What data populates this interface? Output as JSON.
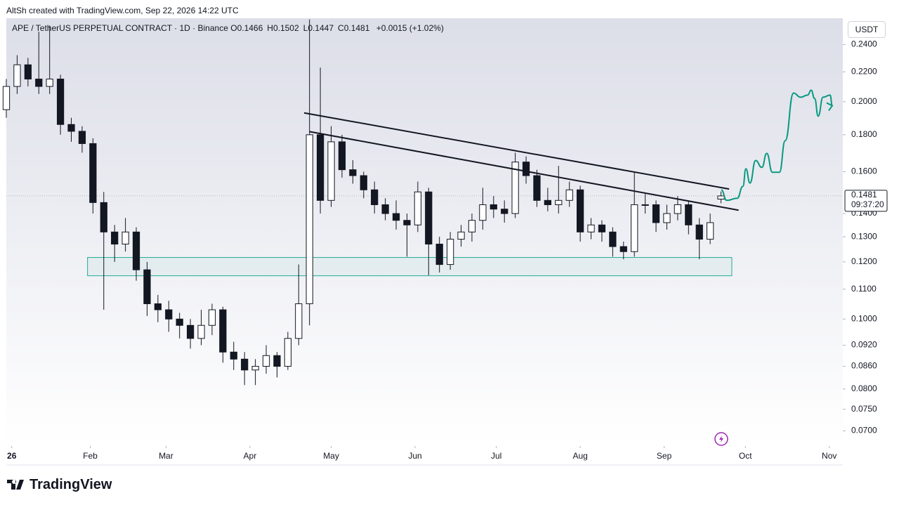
{
  "header": {
    "credit": "AltSh created with TradingView.com, Sep 22, 2026 14:22 UTC",
    "symbol": "APE / TetherUS PERPETUAL CONTRACT · 1D · Binance",
    "ohlc": [
      {
        "key": "O",
        "value": "0.1466"
      },
      {
        "key": "H",
        "value": "0.1502"
      },
      {
        "key": "L",
        "value": "0.1447"
      },
      {
        "key": "C",
        "value": "0.1481"
      }
    ],
    "change": "+0.0015 (+1.02%)",
    "currency": "USDT"
  },
  "footer": {
    "brand": "TradingView"
  },
  "chart_data": {
    "type": "candlestick",
    "log_scale": true,
    "up_color": "#ffffff",
    "down_color": "#131722",
    "edge_color": "#131722",
    "x": [
      0,
      4,
      8,
      12,
      16,
      20,
      24,
      28,
      32,
      36,
      40,
      44,
      48,
      52,
      56,
      60,
      64,
      68,
      72,
      76,
      80,
      84,
      88,
      92,
      96,
      100,
      104,
      108,
      112,
      116,
      120,
      124,
      128,
      132,
      136,
      140,
      144,
      148,
      152,
      156,
      160,
      164,
      168,
      172,
      176,
      180,
      184,
      188,
      192,
      196,
      200,
      204,
      208,
      212,
      216,
      220,
      224,
      228,
      232,
      236,
      240,
      244,
      248,
      252,
      256,
      260,
      264
    ],
    "open": [
      0.195,
      0.21,
      0.225,
      0.215,
      0.21,
      0.215,
      0.186,
      0.182,
      0.175,
      0.145,
      0.132,
      0.127,
      0.132,
      0.117,
      0.105,
      0.103,
      0.1,
      0.098,
      0.094,
      0.098,
      0.103,
      0.09,
      0.088,
      0.085,
      0.086,
      0.089,
      0.086,
      0.094,
      0.105,
      0.18,
      0.146,
      0.176,
      0.161,
      0.158,
      0.151,
      0.144,
      0.14,
      0.137,
      0.135,
      0.15,
      0.127,
      0.119,
      0.129,
      0.132,
      0.137,
      0.144,
      0.142,
      0.14,
      0.165,
      0.158,
      0.146,
      0.144,
      0.146,
      0.151,
      0.132,
      0.135,
      0.132,
      0.126,
      0.124,
      0.144,
      0.144,
      0.136,
      0.14,
      0.144,
      0.135,
      0.129,
      0.1466
    ],
    "high": [
      0.215,
      0.232,
      0.23,
      0.25,
      0.255,
      0.218,
      0.19,
      0.185,
      0.178,
      0.15,
      0.135,
      0.138,
      0.134,
      0.12,
      0.108,
      0.106,
      0.102,
      0.1,
      0.103,
      0.105,
      0.104,
      0.093,
      0.09,
      0.088,
      0.092,
      0.09,
      0.096,
      0.119,
      0.26,
      0.223,
      0.185,
      0.18,
      0.166,
      0.16,
      0.155,
      0.147,
      0.146,
      0.14,
      0.155,
      0.152,
      0.13,
      0.132,
      0.135,
      0.14,
      0.152,
      0.148,
      0.146,
      0.17,
      0.168,
      0.161,
      0.152,
      0.163,
      0.155,
      0.153,
      0.138,
      0.137,
      0.134,
      0.128,
      0.16,
      0.149,
      0.146,
      0.144,
      0.148,
      0.146,
      0.138,
      0.14,
      0.1502
    ],
    "low": [
      0.19,
      0.205,
      0.21,
      0.205,
      0.205,
      0.18,
      0.176,
      0.17,
      0.14,
      0.103,
      0.12,
      0.124,
      0.113,
      0.101,
      0.099,
      0.096,
      0.094,
      0.091,
      0.092,
      0.095,
      0.087,
      0.085,
      0.081,
      0.081,
      0.084,
      0.083,
      0.085,
      0.092,
      0.098,
      0.14,
      0.143,
      0.157,
      0.154,
      0.147,
      0.14,
      0.137,
      0.133,
      0.122,
      0.132,
      0.115,
      0.116,
      0.117,
      0.126,
      0.128,
      0.133,
      0.138,
      0.136,
      0.138,
      0.154,
      0.143,
      0.141,
      0.14,
      0.143,
      0.128,
      0.129,
      0.128,
      0.122,
      0.121,
      0.122,
      0.14,
      0.132,
      0.133,
      0.137,
      0.131,
      0.121,
      0.127,
      0.1447
    ],
    "close": [
      0.21,
      0.225,
      0.215,
      0.21,
      0.215,
      0.186,
      0.182,
      0.175,
      0.145,
      0.132,
      0.127,
      0.132,
      0.117,
      0.105,
      0.103,
      0.1,
      0.098,
      0.094,
      0.098,
      0.103,
      0.09,
      0.088,
      0.085,
      0.086,
      0.089,
      0.086,
      0.094,
      0.105,
      0.18,
      0.146,
      0.176,
      0.161,
      0.158,
      0.151,
      0.144,
      0.14,
      0.137,
      0.135,
      0.15,
      0.127,
      0.119,
      0.129,
      0.132,
      0.137,
      0.144,
      0.142,
      0.14,
      0.165,
      0.158,
      0.146,
      0.144,
      0.146,
      0.151,
      0.132,
      0.135,
      0.132,
      0.126,
      0.124,
      0.144,
      0.144,
      0.136,
      0.14,
      0.144,
      0.135,
      0.129,
      0.136,
      0.1481
    ],
    "last_price": 0.1481,
    "last_price_label": "0.1481",
    "countdown": "09:37:20",
    "trendlines": [
      {
        "color": "#131722",
        "x": [
          110,
          267
        ],
        "y": [
          0.193,
          0.1514
        ]
      },
      {
        "color": "#131722",
        "x": [
          112,
          270.5
        ],
        "y": [
          0.1818,
          0.1415
        ]
      }
    ],
    "zone": {
      "color": "#22ab94",
      "x": [
        30,
        268
      ],
      "y": [
        0.1148,
        0.1217
      ]
    },
    "projection": {
      "color": "#089981",
      "x": [
        264.1,
        266.1,
        270,
        272.1,
        273.2,
        274.7,
        276.8,
        279.1,
        280.9,
        283,
        285.6,
        287.7,
        290.8,
        293.4,
        296,
        297.3,
        298.6,
        299.9,
        301.7,
        304.3,
        305.1
      ],
      "y": [
        0.151,
        0.146,
        0.147,
        0.1527,
        0.1615,
        0.1543,
        0.1658,
        0.1622,
        0.1696,
        0.1597,
        0.1597,
        0.1766,
        0.2056,
        0.2029,
        0.2043,
        0.2075,
        0.202,
        0.191,
        0.2029,
        0.2043,
        0.1975
      ]
    },
    "xlim": [
      0,
      309
    ],
    "xticks": [
      {
        "value": 2,
        "label": "26"
      },
      {
        "value": 31,
        "label": "Feb"
      },
      {
        "value": 59,
        "label": "Mar"
      },
      {
        "value": 90,
        "label": "Apr"
      },
      {
        "value": 120,
        "label": "May"
      },
      {
        "value": 151,
        "label": "Jun"
      },
      {
        "value": 181,
        "label": "Jul"
      },
      {
        "value": 212,
        "label": "Aug"
      },
      {
        "value": 243,
        "label": "Sep"
      },
      {
        "value": 273,
        "label": "Oct"
      },
      {
        "value": 304,
        "label": "Nov"
      }
    ],
    "ylim": [
      0.0667,
      0.261
    ],
    "yticks": [
      {
        "value": 0.07,
        "label": "0.0700"
      },
      {
        "value": 0.075,
        "label": "0.0750"
      },
      {
        "value": 0.08,
        "label": "0.0800"
      },
      {
        "value": 0.086,
        "label": "0.0860"
      },
      {
        "value": 0.092,
        "label": "0.0920"
      },
      {
        "value": 0.1,
        "label": "0.1000"
      },
      {
        "value": 0.11,
        "label": "0.1100"
      },
      {
        "value": 0.12,
        "label": "0.1200"
      },
      {
        "value": 0.13,
        "label": "0.1300"
      },
      {
        "value": 0.14,
        "label": "0.1400"
      },
      {
        "value": 0.16,
        "label": "0.1600"
      },
      {
        "value": 0.18,
        "label": "0.1800"
      },
      {
        "value": 0.2,
        "label": "0.2000"
      },
      {
        "value": 0.22,
        "label": "0.2200"
      },
      {
        "value": 0.24,
        "label": "0.2400"
      }
    ],
    "grid": false
  }
}
